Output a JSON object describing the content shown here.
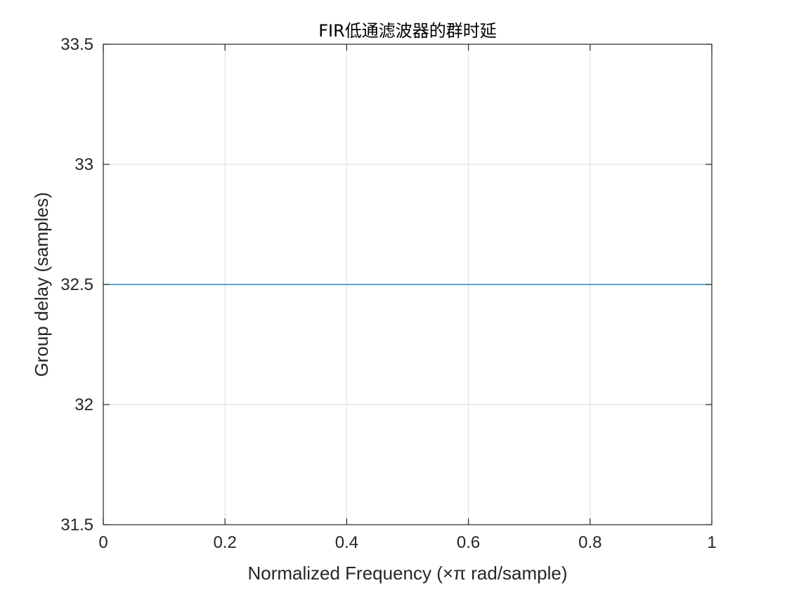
{
  "chart_data": {
    "type": "line",
    "title": "FIR低通滤波器的群时延",
    "xlabel": "Normalized Frequency (×π rad/sample)",
    "ylabel": "Group delay (samples)",
    "xlim": [
      0,
      1
    ],
    "ylim": [
      31.5,
      33.5
    ],
    "x_ticks": [
      0,
      0.2,
      0.4,
      0.6,
      0.8,
      1
    ],
    "x_tick_labels": [
      "0",
      "0.2",
      "0.4",
      "0.6",
      "0.8",
      "1"
    ],
    "y_ticks": [
      31.5,
      32,
      32.5,
      33,
      33.5
    ],
    "y_tick_labels": [
      "31.5",
      "32",
      "32.5",
      "33",
      "33.5"
    ],
    "grid": true,
    "series": [
      {
        "color": "#0072BD",
        "x": [
          0,
          1
        ],
        "y": [
          32.5,
          32.5
        ]
      }
    ]
  }
}
